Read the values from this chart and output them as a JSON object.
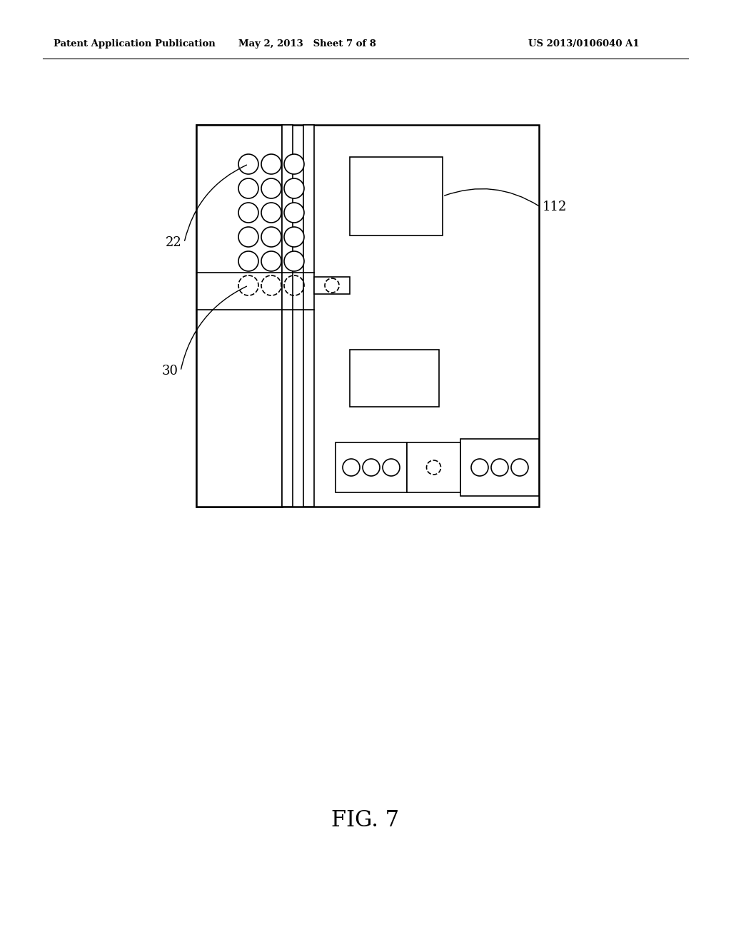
{
  "bg_color": "#ffffff",
  "header_left": "Patent Application Publication",
  "header_mid": "May 2, 2013   Sheet 7 of 8",
  "header_right": "US 2013/0106040 A1",
  "fig_label": "FIG. 7",
  "label_22": "22",
  "label_30": "30",
  "label_112": "112"
}
